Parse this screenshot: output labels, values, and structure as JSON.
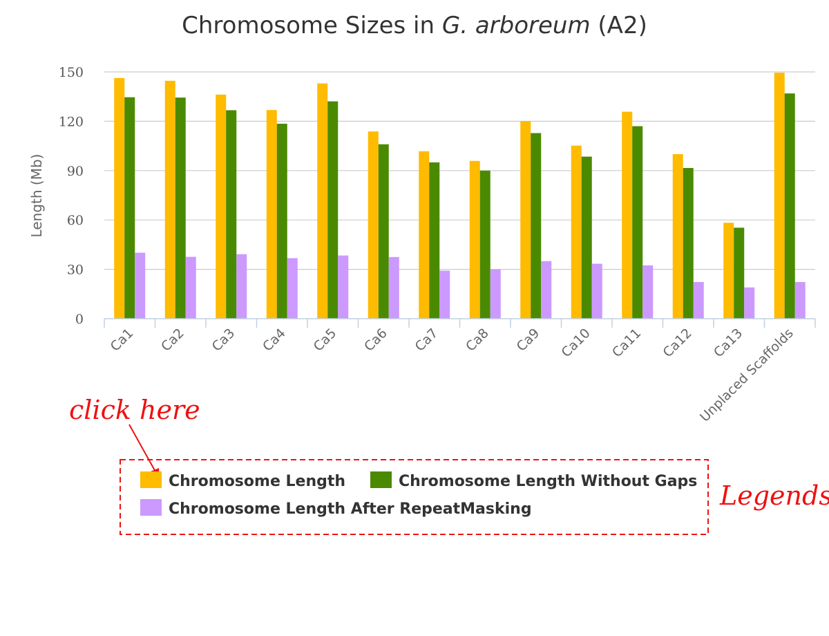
{
  "chart_data": {
    "type": "bar",
    "title": {
      "prefix": "Chromosome Sizes in ",
      "italic": "G. arboreum",
      "suffix": " (A2)"
    },
    "xlabel": "",
    "ylabel": "Length (Mb)",
    "ylim": [
      0,
      150
    ],
    "yticks": [
      "0",
      "30",
      "60",
      "90",
      "120",
      "150"
    ],
    "grid": true,
    "legend_placement": "bottom-left",
    "categories": [
      "Ca1",
      "Ca2",
      "Ca3",
      "Ca4",
      "Ca5",
      "Ca6",
      "Ca7",
      "Ca8",
      "Ca9",
      "Ca10",
      "Ca11",
      "Ca12",
      "Ca13",
      "Unplaced Scaffolds"
    ],
    "series": [
      {
        "name": "Chromosome Length",
        "color": "#ffbb00",
        "values": [
          146.3,
          144.6,
          136.2,
          126.8,
          143.0,
          113.8,
          101.8,
          95.9,
          120.1,
          105.2,
          125.8,
          100.0,
          58.3,
          149.5
        ]
      },
      {
        "name": "Chromosome Length Without Gaps",
        "color": "#4a8a00",
        "values": [
          134.6,
          134.4,
          126.7,
          118.5,
          132.1,
          106.0,
          95.0,
          90.0,
          112.8,
          98.5,
          117.0,
          91.6,
          55.3,
          136.9
        ]
      },
      {
        "name": "Chromosome Length After RepeatMasking",
        "color": "#cc99ff",
        "values": [
          40.1,
          37.6,
          39.2,
          36.8,
          38.4,
          37.5,
          29.2,
          30.0,
          35.0,
          33.4,
          32.4,
          22.3,
          19.0,
          22.3
        ]
      }
    ]
  },
  "annotations": {
    "click_hint": "click here",
    "legend_callout": "Legends",
    "color": "#ee1111"
  }
}
